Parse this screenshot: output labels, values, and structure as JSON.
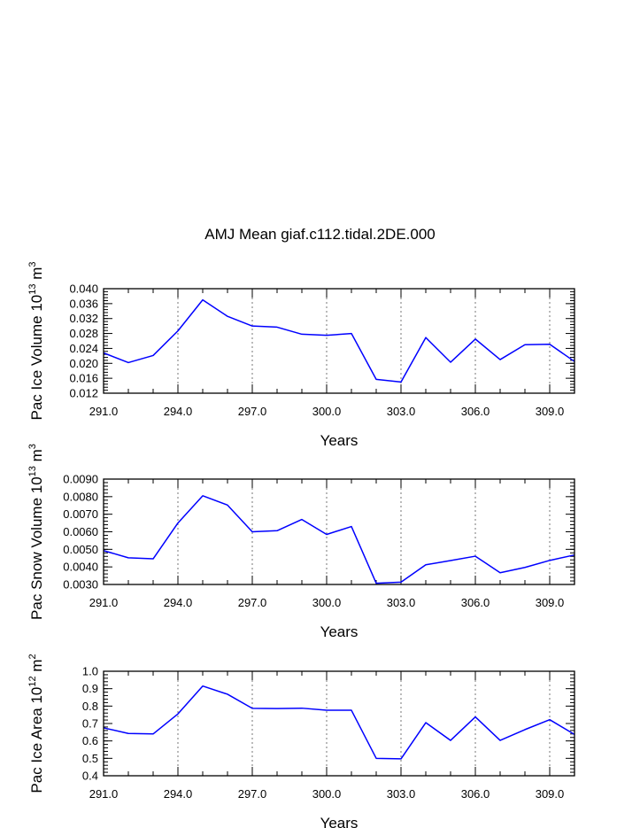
{
  "title": "AMJ Mean giaf.c112.tidal.2DE.000",
  "colors": {
    "line": "#0000ff",
    "axis": "#000000",
    "grid": "#555555"
  },
  "chart_data": [
    {
      "type": "line",
      "xlabel": "Years",
      "ylabel_parts": {
        "base": "Pac Ice Volume 10",
        "exp": "13",
        "unit": "m",
        "unit_exp": "3"
      },
      "x": [
        291,
        292,
        293,
        294,
        295,
        296,
        297,
        298,
        299,
        300,
        301,
        302,
        303,
        304,
        305,
        306,
        307,
        308,
        309,
        310
      ],
      "values": [
        0.0228,
        0.0202,
        0.0221,
        0.0287,
        0.037,
        0.0326,
        0.03,
        0.0297,
        0.0278,
        0.0275,
        0.028,
        0.0157,
        0.015,
        0.0269,
        0.0203,
        0.0265,
        0.021,
        0.025,
        0.0251,
        0.0205
      ],
      "xlim": [
        291,
        310
      ],
      "ylim": [
        0.012,
        0.04
      ],
      "xticks": [
        "291.0",
        "294.0",
        "297.0",
        "300.0",
        "303.0",
        "306.0",
        "309.0"
      ],
      "xtick_values": [
        291,
        294,
        297,
        300,
        303,
        306,
        309
      ],
      "yticks": [
        "0.012",
        "0.016",
        "0.020",
        "0.024",
        "0.028",
        "0.032",
        "0.036",
        "0.040"
      ],
      "ytick_values": [
        0.012,
        0.016,
        0.02,
        0.024,
        0.028,
        0.032,
        0.036,
        0.04
      ],
      "y_minor_step": 0.0008,
      "grid": "vertical dashed at major x ticks"
    },
    {
      "type": "line",
      "xlabel": "Years",
      "ylabel_parts": {
        "base": "Pac Snow Volume 10",
        "exp": "13",
        "unit": "m",
        "unit_exp": "3"
      },
      "x": [
        291,
        292,
        293,
        294,
        295,
        296,
        297,
        298,
        299,
        300,
        301,
        302,
        303,
        304,
        305,
        306,
        307,
        308,
        309,
        310
      ],
      "values": [
        0.00493,
        0.00452,
        0.00446,
        0.0065,
        0.00805,
        0.00752,
        0.006,
        0.00606,
        0.0067,
        0.00585,
        0.0063,
        0.00307,
        0.00313,
        0.00412,
        0.00436,
        0.00461,
        0.00367,
        0.00397,
        0.00437,
        0.00468
      ],
      "xlim": [
        291,
        310
      ],
      "ylim": [
        0.003,
        0.009
      ],
      "xticks": [
        "291.0",
        "294.0",
        "297.0",
        "300.0",
        "303.0",
        "306.0",
        "309.0"
      ],
      "xtick_values": [
        291,
        294,
        297,
        300,
        303,
        306,
        309
      ],
      "yticks": [
        "0.0030",
        "0.0040",
        "0.0050",
        "0.0060",
        "0.0070",
        "0.0080",
        "0.0090"
      ],
      "ytick_values": [
        0.003,
        0.004,
        0.005,
        0.006,
        0.007,
        0.008,
        0.009
      ],
      "y_minor_step": 0.0002,
      "grid": "vertical dashed at major x ticks"
    },
    {
      "type": "line",
      "xlabel": "Years",
      "ylabel_parts": {
        "base": "Pac Ice Area 10",
        "exp": "12",
        "unit": "m",
        "unit_exp": "2"
      },
      "x": [
        291,
        292,
        293,
        294,
        295,
        296,
        297,
        298,
        299,
        300,
        301,
        302,
        303,
        304,
        305,
        306,
        307,
        308,
        309,
        310
      ],
      "values": [
        0.675,
        0.643,
        0.64,
        0.755,
        0.915,
        0.868,
        0.787,
        0.786,
        0.788,
        0.776,
        0.776,
        0.5,
        0.497,
        0.705,
        0.603,
        0.738,
        0.603,
        0.665,
        0.722,
        0.637
      ],
      "xlim": [
        291,
        310
      ],
      "ylim": [
        0.4,
        1.0
      ],
      "xticks": [
        "291.0",
        "294.0",
        "297.0",
        "300.0",
        "303.0",
        "306.0",
        "309.0"
      ],
      "xtick_values": [
        291,
        294,
        297,
        300,
        303,
        306,
        309
      ],
      "yticks": [
        "0.4",
        "0.5",
        "0.6",
        "0.7",
        "0.8",
        "0.9",
        "1.0"
      ],
      "ytick_values": [
        0.4,
        0.5,
        0.6,
        0.7,
        0.8,
        0.9,
        1.0
      ],
      "y_minor_step": 0.02,
      "grid": "vertical dashed at major x ticks"
    }
  ]
}
